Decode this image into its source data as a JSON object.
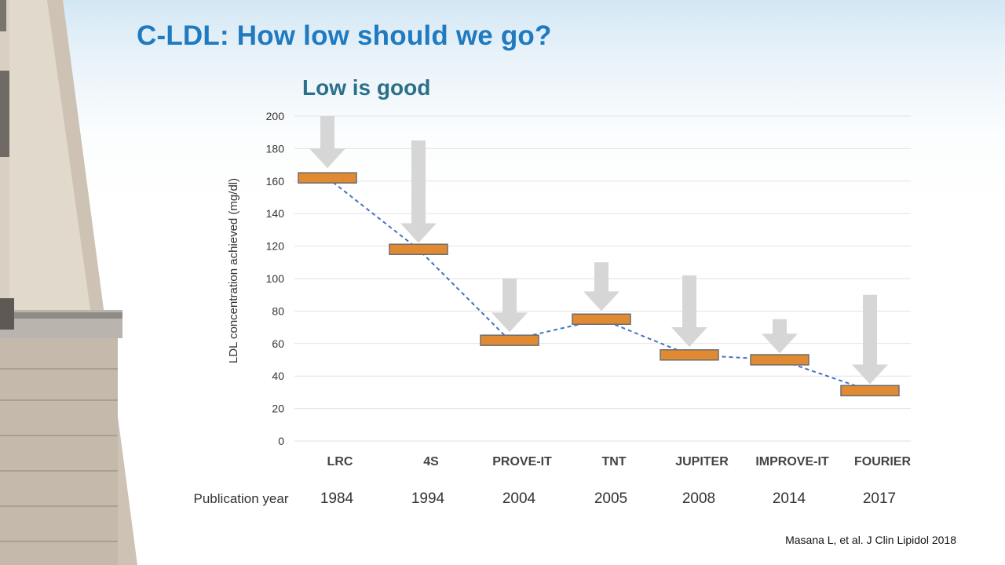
{
  "slide": {
    "title": "C-LDL: How low should we go?",
    "subtitle": "Low is good",
    "citation": "Masana L, et al. J Clin Lipidol 2018"
  },
  "chart_data": {
    "type": "line",
    "title": "Low is good",
    "ylabel": "LDL concentration achieved  (mg/dl)",
    "ylim": [
      0,
      200
    ],
    "yticks": [
      0,
      20,
      40,
      60,
      80,
      100,
      120,
      140,
      160,
      180,
      200
    ],
    "grid": true,
    "categories": [
      "LRC",
      "4S",
      "PROVE-IT",
      "TNT",
      "JUPITER",
      "IMPROVE-IT",
      "FOURIER"
    ],
    "publication_year_label": "Publication year",
    "publication_years": [
      "1984",
      "1994",
      "2004",
      "2005",
      "2008",
      "2014",
      "2017"
    ],
    "series": [
      {
        "name": "",
        "values": [
          162,
          118,
          62,
          75,
          53,
          50,
          31
        ]
      }
    ],
    "reduction_arrows": [
      {
        "from": 200,
        "to": 168
      },
      {
        "from": 185,
        "to": 122
      },
      {
        "from": 100,
        "to": 67
      },
      {
        "from": 110,
        "to": 80
      },
      {
        "from": 102,
        "to": 58
      },
      {
        "from": 75,
        "to": 54
      },
      {
        "from": 90,
        "to": 35
      }
    ],
    "colors": {
      "bar": "#e08a33",
      "bar_border": "#6d6d6d",
      "line": "#4472c4",
      "arrow": "#d6d6d6",
      "grid": "#e2e2e2"
    }
  }
}
